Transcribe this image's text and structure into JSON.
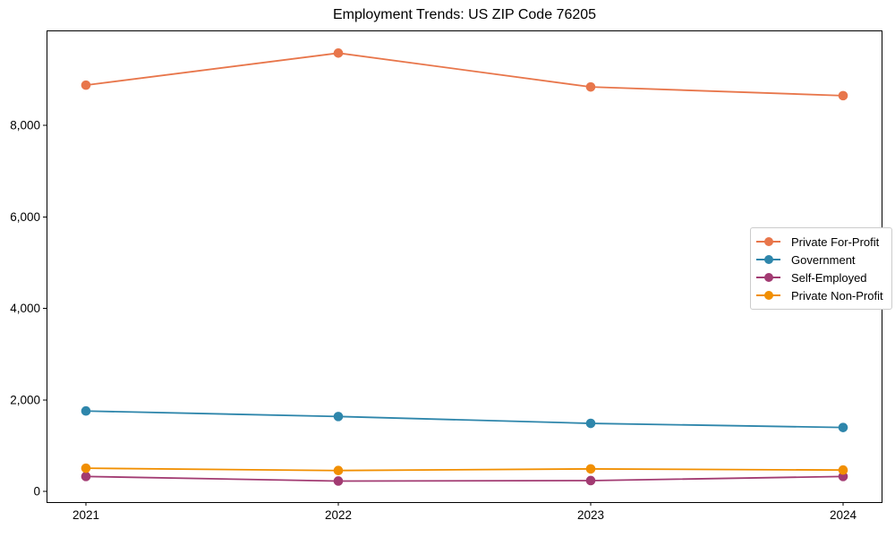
{
  "window": {
    "background": "#ffffff"
  },
  "chart_data": {
    "type": "line",
    "title": "Employment Trends: US ZIP Code 76205",
    "categories": [
      "2021",
      "2022",
      "2023",
      "2024"
    ],
    "series": [
      {
        "name": "Private For-Profit",
        "color": "#e8764b",
        "values": [
          8880,
          9580,
          8840,
          8650
        ]
      },
      {
        "name": "Government",
        "color": "#2e86ab",
        "values": [
          1760,
          1640,
          1490,
          1400
        ]
      },
      {
        "name": "Self-Employed",
        "color": "#a23b72",
        "values": [
          330,
          230,
          240,
          330
        ]
      },
      {
        "name": "Private Non-Profit",
        "color": "#f18f01",
        "values": [
          510,
          460,
          495,
          470
        ]
      }
    ],
    "yticks": [
      {
        "value": 0,
        "label": "0"
      },
      {
        "value": 2000,
        "label": "2,000"
      },
      {
        "value": 4000,
        "label": "4,000"
      },
      {
        "value": 6000,
        "label": "6,000"
      },
      {
        "value": 8000,
        "label": "8,000"
      }
    ],
    "ylim": [
      -230,
      10075
    ],
    "xlabel": "",
    "ylabel": "",
    "grid": false,
    "legend_position": "center-right",
    "axis_color": "#000000",
    "marker_style": "circle"
  }
}
